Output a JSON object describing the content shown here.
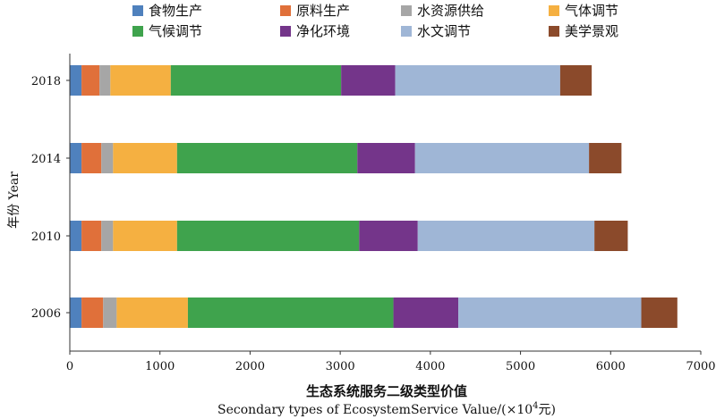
{
  "chart_data": {
    "type": "bar",
    "orientation": "horizontal",
    "stacked": true,
    "categories": [
      "2018",
      "2014",
      "2010",
      "2006"
    ],
    "series": [
      {
        "name": "食物生产",
        "color": "#4f81bd",
        "values": [
          130,
          130,
          130,
          130
        ]
      },
      {
        "name": "原料生产",
        "color": "#e0703a",
        "values": [
          200,
          220,
          220,
          240
        ]
      },
      {
        "name": "水资源供给",
        "color": "#a6a6a6",
        "values": [
          120,
          130,
          130,
          150
        ]
      },
      {
        "name": "气体调节",
        "color": "#f5b041",
        "values": [
          670,
          710,
          710,
          790
        ]
      },
      {
        "name": "气候调节",
        "color": "#3fa34d",
        "values": [
          1890,
          2000,
          2020,
          2280
        ]
      },
      {
        "name": "净化环境",
        "color": "#74358a",
        "values": [
          600,
          640,
          650,
          720
        ]
      },
      {
        "name": "水文调节",
        "color": "#9fb6d6",
        "values": [
          1830,
          1930,
          1960,
          2030
        ]
      },
      {
        "name": "美学景观",
        "color": "#8b4a2b",
        "values": [
          350,
          360,
          370,
          400
        ]
      }
    ],
    "xlim": [
      0,
      7000
    ],
    "xticks": [
      "0",
      "1000",
      "2000",
      "3000",
      "4000",
      "5000",
      "6000",
      "7000"
    ],
    "xlabel_zh": "生态系统服务二级类型价值",
    "xlabel_en": "Secondary types of EcosystemService Value/(×10",
    "xlabel_sup": "4",
    "xlabel_unit": "元)",
    "ylabel": "年份 Year",
    "legend_position": "top",
    "grid": false
  }
}
